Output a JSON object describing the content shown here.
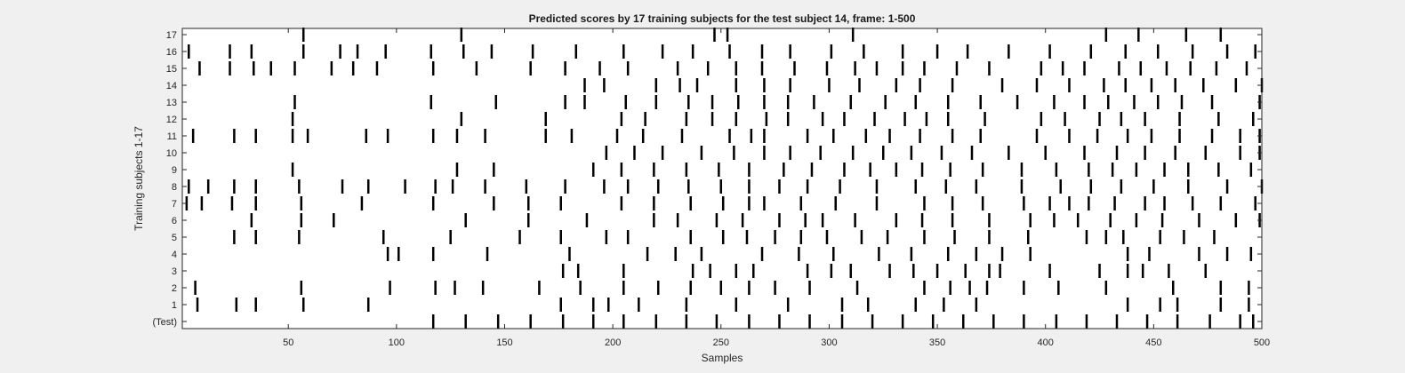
{
  "chart_data": {
    "type": "raster",
    "title": "Predicted scores by 17 training subjects for the test subject 14, frame: 1-500",
    "xlabel": "Samples",
    "ylabel": "Training subjects 1-17",
    "xlim": [
      1,
      500
    ],
    "xticks": [
      50,
      100,
      150,
      200,
      250,
      300,
      350,
      400,
      450,
      500
    ],
    "yticklabels": [
      "(Test)",
      "1",
      "2",
      "3",
      "4",
      "5",
      "6",
      "7",
      "8",
      "9",
      "10",
      "11",
      "12",
      "13",
      "14",
      "15",
      "16",
      "17"
    ],
    "grid": false,
    "rows": [
      {
        "label": "(Test)",
        "events": [
          117,
          132,
          147,
          162,
          177,
          191,
          205,
          220,
          234,
          248,
          263,
          277,
          291,
          306,
          320,
          334,
          348,
          362,
          376,
          390,
          405,
          419,
          433,
          447,
          461,
          476,
          490,
          496
        ]
      },
      {
        "label": "1",
        "events": [
          8,
          26,
          35,
          57,
          87,
          176,
          191,
          198,
          212,
          234,
          257,
          281,
          306,
          318,
          340,
          353,
          368,
          438,
          453,
          461,
          481,
          494
        ]
      },
      {
        "label": "2",
        "events": [
          7,
          56,
          97,
          118,
          127,
          140,
          166,
          185,
          205,
          221,
          236,
          250,
          263,
          275,
          291,
          313,
          344,
          356,
          365,
          373,
          390,
          406,
          428,
          459,
          481,
          494
        ]
      },
      {
        "label": "3",
        "events": [
          177,
          184,
          205,
          237,
          245,
          257,
          265,
          290,
          301,
          310,
          328,
          339,
          350,
          363,
          374,
          379,
          402,
          425,
          438,
          445,
          457,
          474
        ]
      },
      {
        "label": "4",
        "events": [
          96,
          101,
          117,
          142,
          180,
          216,
          229,
          241,
          269,
          286,
          302,
          323,
          338,
          355,
          368,
          380,
          393,
          438,
          448,
          471,
          484,
          495
        ]
      },
      {
        "label": "5",
        "events": [
          25,
          35,
          55,
          94,
          125,
          157,
          176,
          197,
          207,
          236,
          251,
          262,
          275,
          287,
          299,
          315,
          327,
          344,
          358,
          374,
          392,
          419,
          428,
          436,
          453,
          464,
          478
        ]
      },
      {
        "label": "6",
        "events": [
          33,
          56,
          71,
          132,
          161,
          188,
          219,
          230,
          248,
          260,
          277,
          289,
          297,
          312,
          331,
          343,
          357,
          374,
          393,
          404,
          415,
          430,
          442,
          454,
          471,
          488,
          499
        ]
      },
      {
        "label": "7",
        "events": [
          3,
          10,
          24,
          35,
          56,
          84,
          117,
          145,
          161,
          176,
          204,
          219,
          236,
          251,
          263,
          270,
          287,
          303,
          322,
          344,
          357,
          371,
          390,
          402,
          411,
          420,
          432,
          446,
          455,
          468,
          481,
          497
        ]
      },
      {
        "label": "8",
        "events": [
          4,
          13,
          25,
          35,
          55,
          75,
          87,
          104,
          118,
          126,
          141,
          160,
          178,
          196,
          207,
          221,
          235,
          250,
          263,
          277,
          290,
          305,
          322,
          340,
          354,
          368,
          389,
          407,
          421,
          435,
          450,
          466,
          484,
          500
        ]
      },
      {
        "label": "9",
        "events": [
          52,
          128,
          145,
          191,
          204,
          219,
          234,
          249,
          263,
          279,
          292,
          307,
          319,
          331,
          343,
          356,
          371,
          389,
          405,
          420,
          431,
          442,
          455,
          466,
          480,
          495
        ]
      },
      {
        "label": "10",
        "events": [
          197,
          210,
          223,
          241,
          256,
          270,
          282,
          296,
          311,
          325,
          338,
          352,
          366,
          383,
          400,
          418,
          433,
          446,
          460,
          474,
          490,
          499
        ]
      },
      {
        "label": "11",
        "events": [
          6,
          25,
          35,
          52,
          59,
          86,
          96,
          117,
          128,
          141,
          169,
          181,
          202,
          214,
          232,
          254,
          264,
          270,
          290,
          302,
          317,
          328,
          342,
          357,
          370,
          396,
          411,
          424,
          438,
          449,
          462,
          477,
          490,
          499
        ]
      },
      {
        "label": "12",
        "events": [
          52,
          130,
          169,
          204,
          215,
          234,
          246,
          257,
          271,
          281,
          297,
          307,
          321,
          335,
          345,
          355,
          372,
          398,
          409,
          425,
          435,
          446,
          462,
          480,
          496
        ]
      },
      {
        "label": "13",
        "events": [
          53,
          116,
          146,
          178,
          187,
          206,
          220,
          235,
          246,
          258,
          270,
          281,
          293,
          310,
          326,
          340,
          355,
          370,
          387,
          404,
          418,
          429,
          441,
          452,
          463,
          477,
          499
        ]
      },
      {
        "label": "14",
        "events": [
          187,
          196,
          220,
          231,
          239,
          257,
          270,
          282,
          300,
          314,
          331,
          342,
          357,
          380,
          396,
          411,
          427,
          437,
          449,
          460,
          473,
          488,
          500
        ]
      },
      {
        "label": "15",
        "events": [
          9,
          23,
          34,
          42,
          53,
          70,
          80,
          91,
          117,
          137,
          162,
          178,
          194,
          207,
          230,
          244,
          257,
          269,
          284,
          299,
          312,
          322,
          334,
          344,
          359,
          374,
          398,
          408,
          418,
          434,
          444,
          456,
          467,
          479,
          493
        ]
      },
      {
        "label": "16",
        "events": [
          4,
          23,
          33,
          57,
          74,
          82,
          95,
          116,
          131,
          144,
          163,
          183,
          205,
          223,
          237,
          254,
          269,
          282,
          301,
          316,
          334,
          350,
          364,
          383,
          402,
          421,
          437,
          452,
          468,
          484,
          497
        ]
      },
      {
        "label": "17",
        "events": [
          57,
          130,
          247,
          253,
          311,
          428,
          443,
          465,
          481
        ]
      }
    ]
  }
}
